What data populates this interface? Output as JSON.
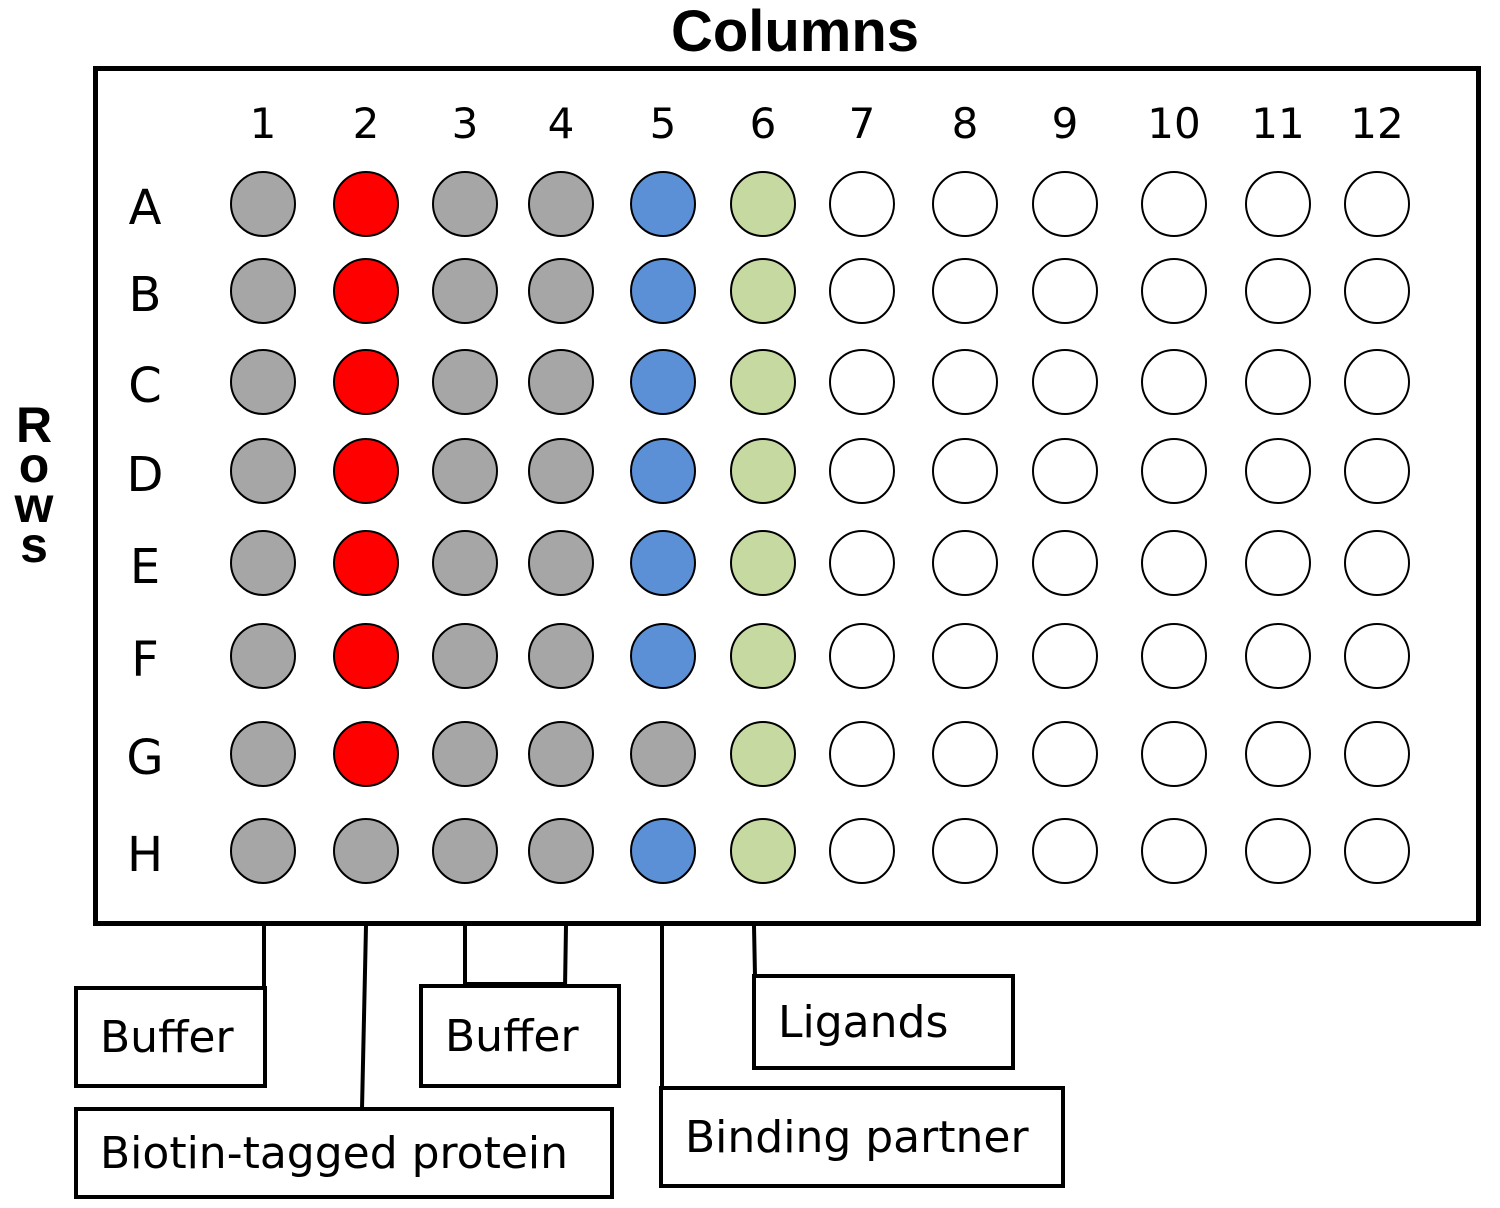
{
  "title": "Columns",
  "rows_title": "Rows",
  "columns": [
    "1",
    "2",
    "3",
    "4",
    "5",
    "6",
    "7",
    "8",
    "9",
    "10",
    "11",
    "12"
  ],
  "rows": [
    "A",
    "B",
    "C",
    "D",
    "E",
    "F",
    "G",
    "H"
  ],
  "colors": {
    "buffer": "#a6a6a6",
    "biotin": "#ff0000",
    "partner": "#5b8fd6",
    "ligand": "#c5d9a1",
    "empty": "#ffffff"
  },
  "wells": [
    [
      "buffer",
      "biotin",
      "buffer",
      "buffer",
      "partner",
      "ligand",
      "empty",
      "empty",
      "empty",
      "empty",
      "empty",
      "empty"
    ],
    [
      "buffer",
      "biotin",
      "buffer",
      "buffer",
      "partner",
      "ligand",
      "empty",
      "empty",
      "empty",
      "empty",
      "empty",
      "empty"
    ],
    [
      "buffer",
      "biotin",
      "buffer",
      "buffer",
      "partner",
      "ligand",
      "empty",
      "empty",
      "empty",
      "empty",
      "empty",
      "empty"
    ],
    [
      "buffer",
      "biotin",
      "buffer",
      "buffer",
      "partner",
      "ligand",
      "empty",
      "empty",
      "empty",
      "empty",
      "empty",
      "empty"
    ],
    [
      "buffer",
      "biotin",
      "buffer",
      "buffer",
      "partner",
      "ligand",
      "empty",
      "empty",
      "empty",
      "empty",
      "empty",
      "empty"
    ],
    [
      "buffer",
      "biotin",
      "buffer",
      "buffer",
      "partner",
      "ligand",
      "empty",
      "empty",
      "empty",
      "empty",
      "empty",
      "empty"
    ],
    [
      "buffer",
      "biotin",
      "buffer",
      "buffer",
      "buffer",
      "ligand",
      "empty",
      "empty",
      "empty",
      "empty",
      "empty",
      "empty"
    ],
    [
      "buffer",
      "buffer",
      "buffer",
      "buffer",
      "partner",
      "ligand",
      "empty",
      "empty",
      "empty",
      "empty",
      "empty",
      "empty"
    ]
  ],
  "legend": {
    "buffer_1": "Buffer",
    "biotin": "Biotin-tagged protein",
    "buffer_2": "Buffer",
    "partner": "Binding partner",
    "ligands": "Ligands"
  }
}
